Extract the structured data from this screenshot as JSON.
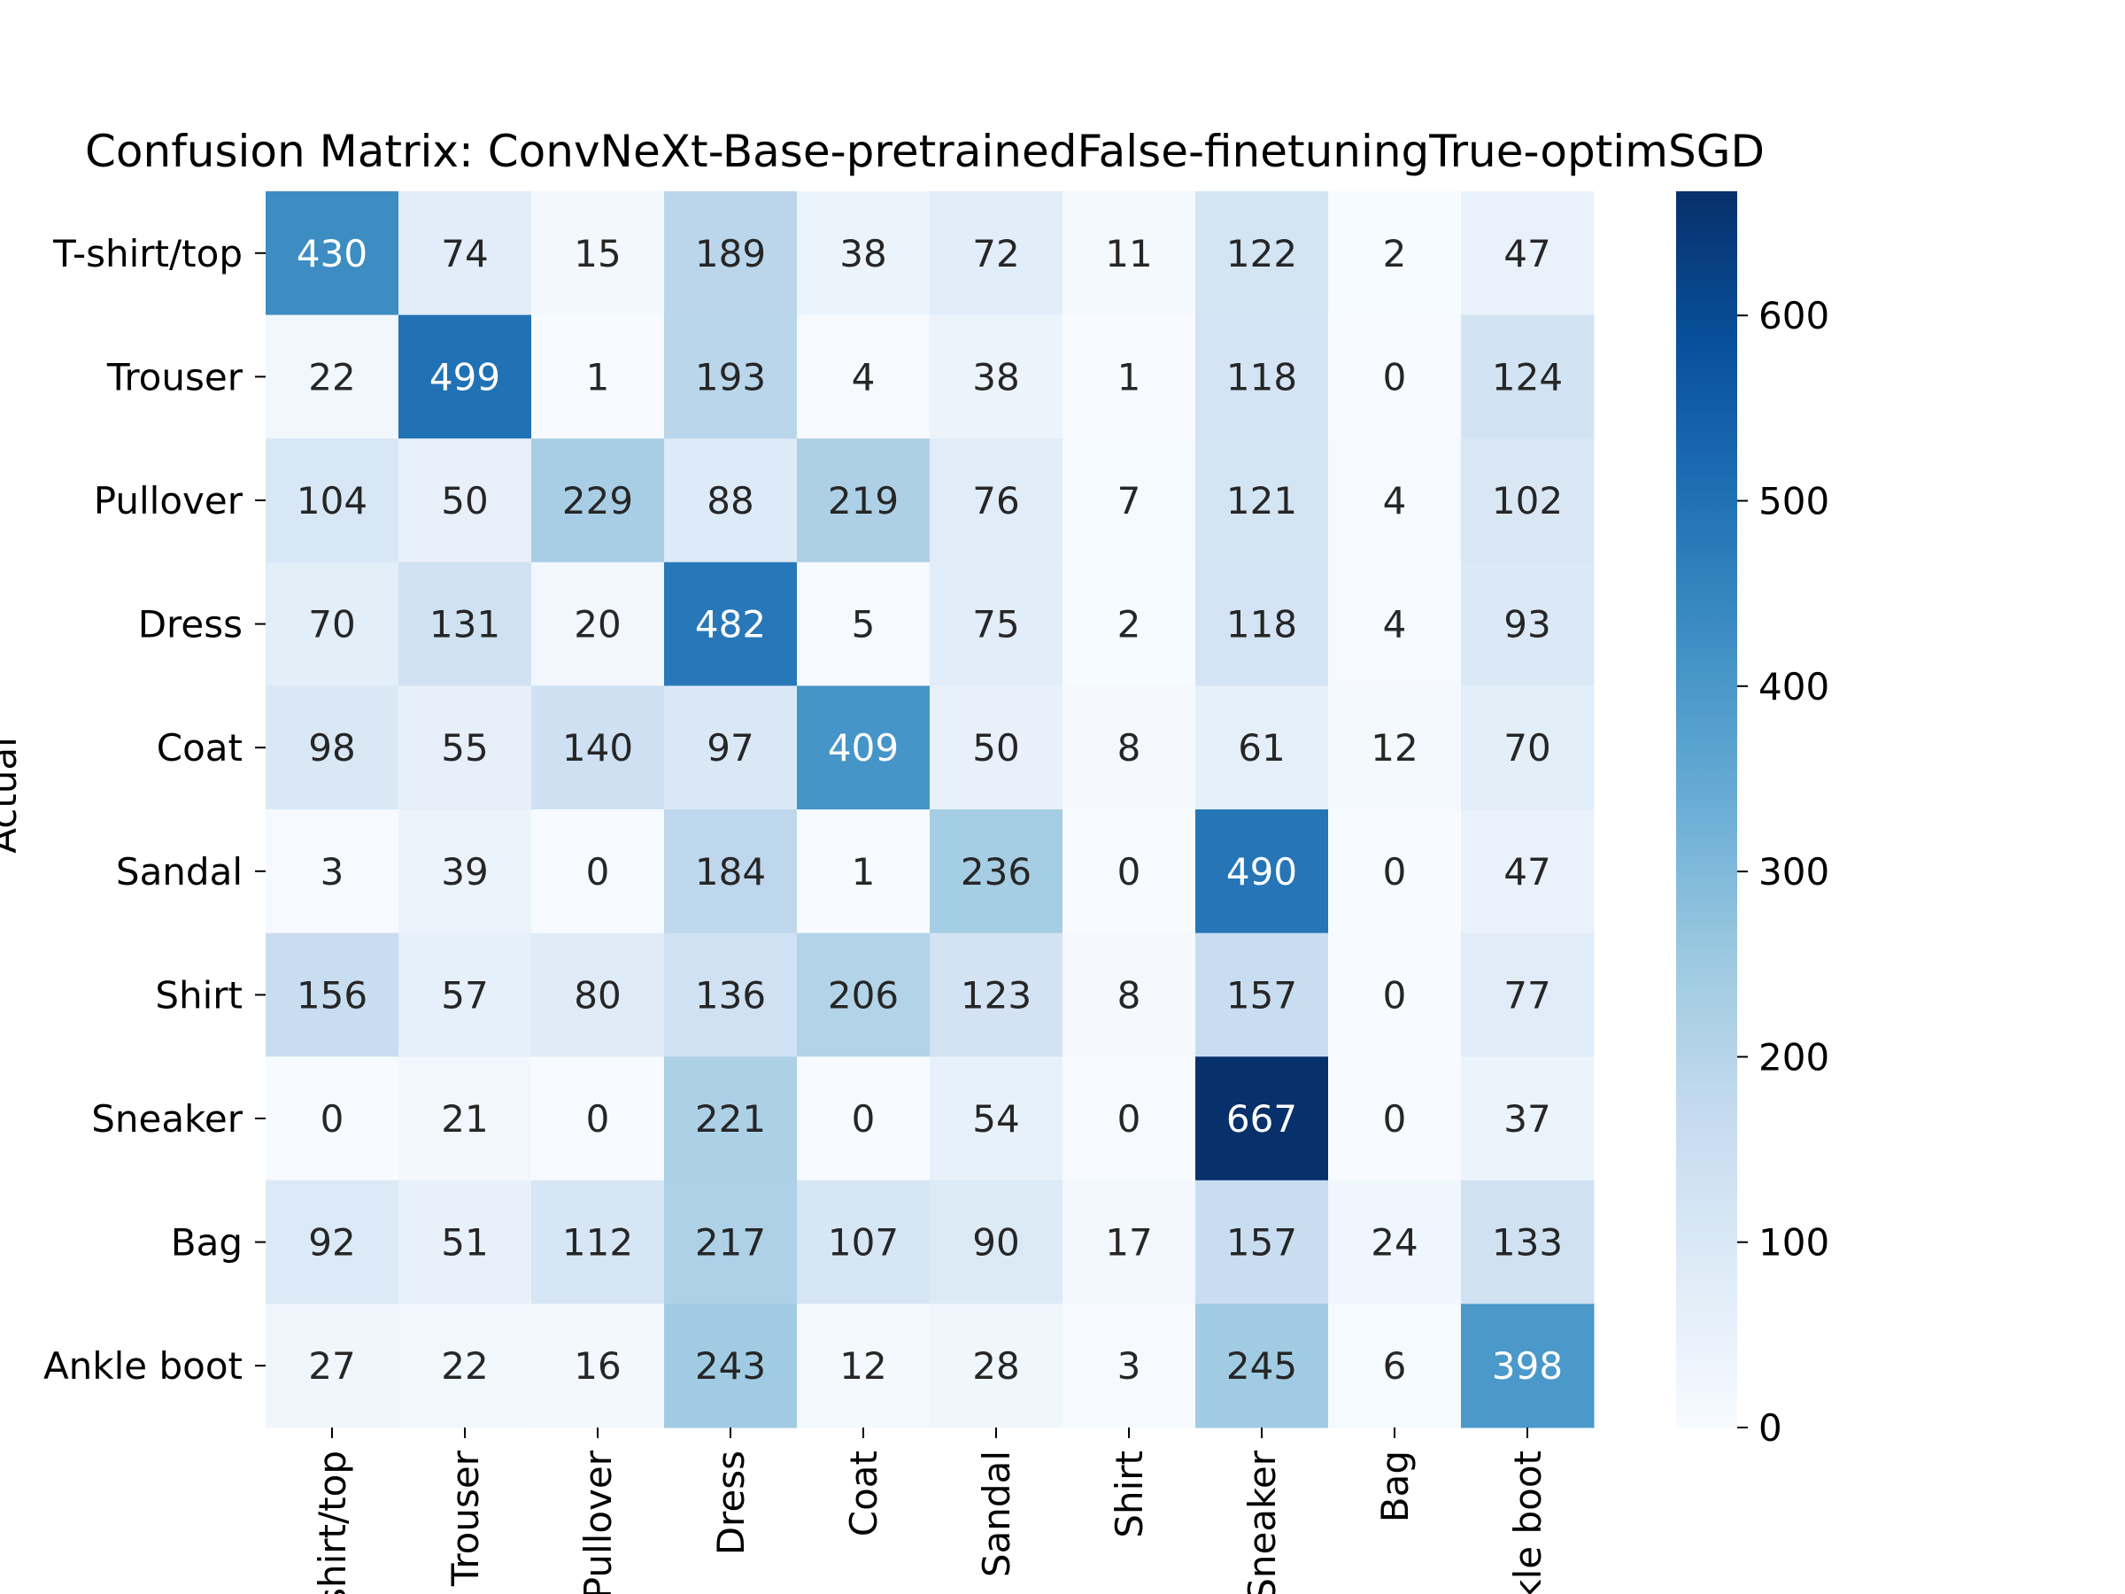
{
  "chart_data": {
    "type": "heatmap",
    "title": "Confusion Matrix: ConvNeXt-Base-pretrainedFalse-finetuningTrue-optimSGD",
    "ylabel": "Actual",
    "xlabel": "",
    "row_labels": [
      "T-shirt/top",
      "Trouser",
      "Pullover",
      "Dress",
      "Coat",
      "Sandal",
      "Shirt",
      "Sneaker",
      "Bag",
      "Ankle boot"
    ],
    "col_labels": [
      "T-shirt/top",
      "Trouser",
      "Pullover",
      "Dress",
      "Coat",
      "Sandal",
      "Shirt",
      "Sneaker",
      "Bag",
      "Ankle boot"
    ],
    "values": [
      [
        430,
        74,
        15,
        189,
        38,
        72,
        11,
        122,
        2,
        47
      ],
      [
        22,
        499,
        1,
        193,
        4,
        38,
        1,
        118,
        0,
        124
      ],
      [
        104,
        50,
        229,
        88,
        219,
        76,
        7,
        121,
        4,
        102
      ],
      [
        70,
        131,
        20,
        482,
        5,
        75,
        2,
        118,
        4,
        93
      ],
      [
        98,
        55,
        140,
        97,
        409,
        50,
        8,
        61,
        12,
        70
      ],
      [
        3,
        39,
        0,
        184,
        1,
        236,
        0,
        490,
        0,
        47
      ],
      [
        156,
        57,
        80,
        136,
        206,
        123,
        8,
        157,
        0,
        77
      ],
      [
        0,
        21,
        0,
        221,
        0,
        54,
        0,
        667,
        0,
        37
      ],
      [
        92,
        51,
        112,
        217,
        107,
        90,
        17,
        157,
        24,
        133
      ],
      [
        27,
        22,
        16,
        243,
        12,
        28,
        3,
        245,
        6,
        398
      ]
    ],
    "colorbar": {
      "colormap": "Blues",
      "range": [
        0,
        667
      ],
      "ticks": [
        0,
        100,
        200,
        300,
        400,
        500,
        600
      ],
      "tick_labels": [
        "0",
        "100",
        "200",
        "300",
        "400",
        "500",
        "600"
      ]
    },
    "colors": {
      "low": "#f7fbff",
      "high": "#08306b",
      "text_dark": "#262626",
      "text_light": "#ffffff"
    }
  }
}
